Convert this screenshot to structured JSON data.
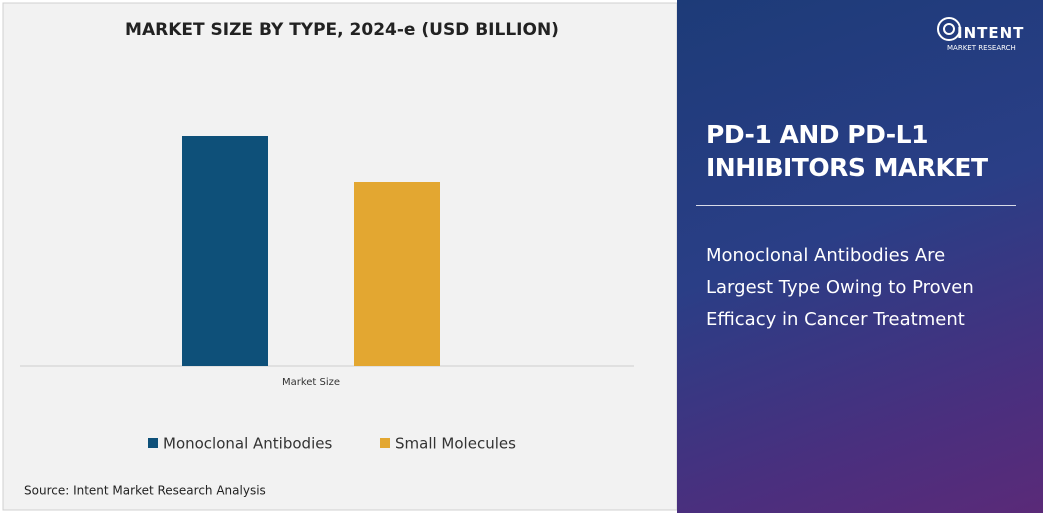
{
  "chart_data": {
    "type": "bar",
    "title": "MARKET SIZE BY TYPE, 2024-e (USD BILLION)",
    "categories": [
      "Market Size"
    ],
    "series": [
      {
        "name": "Monoclonal Antibodies",
        "color": "#0e5079",
        "values": [
          46
        ]
      },
      {
        "name": "Small Molecules",
        "color": "#e3a731",
        "values": [
          36.8
        ]
      }
    ],
    "ylim": [
      0,
      50
    ],
    "grid": false,
    "legend": "bottom",
    "source": "Source: Intent Market Research Analysis"
  },
  "panel": {
    "title": "PD-1 AND PD-L1 INHIBITORS MARKET",
    "subtitle": "Monoclonal Antibodies Are Largest Type Owing to Proven Efficacy in Cancer Treatment",
    "logo": {
      "name": "INTENT",
      "tagline": "MARKET RESEARCH"
    }
  }
}
